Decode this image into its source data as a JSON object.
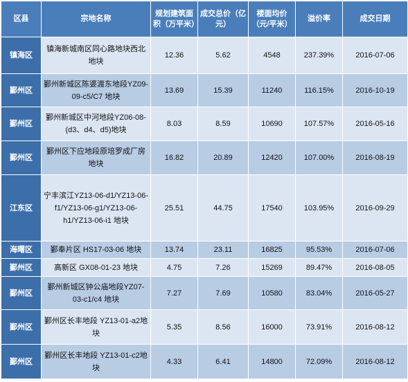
{
  "headers": [
    "区县",
    "宗地名称",
    "规划建筑面积（万平米）",
    "成交总价（亿元）",
    "楼面均价（元/平米）",
    "溢价率",
    "成交日期"
  ],
  "rows": [
    {
      "district": "镇海区",
      "name": "镇海新城南区同心路地块西北地块",
      "area": "12.36",
      "total": "5.62",
      "unit_price": "4548",
      "premium": "237.39%",
      "date": "2016-07-06"
    },
    {
      "district": "鄞州区",
      "name": "鄞州新城区陈婆渡东地段YZ09-09-c5/C7 地块",
      "area": "13.69",
      "total": "15.39",
      "unit_price": "11240",
      "premium": "116.15%",
      "date": "2016-10-19"
    },
    {
      "district": "鄞州区",
      "name": "鄞州新城区中河地段YZ06-08-(d3、d4、d5)地块",
      "area": "8.03",
      "total": "8.59",
      "unit_price": "10690",
      "premium": "107.57%",
      "date": "2016-05-16"
    },
    {
      "district": "鄞州区",
      "name": "鄞州区下应地段原培罗成厂房地块",
      "area": "16.82",
      "total": "20.89",
      "unit_price": "12420",
      "premium": "107.00%",
      "date": "2016-08-19"
    },
    {
      "district": "江东区",
      "name": "宁丰滨江YZ13-06-d1/YZ13-06-f1/YZ13-06-g1/YZ13-06-h1/YZ13-06-i1 地块",
      "area": "25.51",
      "total": "44.75",
      "unit_price": "17540",
      "premium": "103.95%",
      "date": "2016-09-29"
    },
    {
      "district": "海曙区",
      "name": "鄞奉片区 HS17-03-06 地块",
      "area": "13.74",
      "total": "23.11",
      "unit_price": "16825",
      "premium": "95.53%",
      "date": "2016-07-06"
    },
    {
      "district": "鄞州区",
      "name": "高新区 GX08-01-23 地块",
      "area": "4.75",
      "total": "7.26",
      "unit_price": "15269",
      "premium": "89.47%",
      "date": "2016-08-05"
    },
    {
      "district": "鄞州区",
      "name": "鄞州新城区钟公庙地段YZ07-03-c1/c4 地块",
      "area": "7.27",
      "total": "7.69",
      "unit_price": "10580",
      "premium": "83.04%",
      "date": "2016-05-27"
    },
    {
      "district": "鄞州区",
      "name": "鄞州区长丰地段 YZ13-01-a2地块",
      "area": "5.35",
      "total": "8.56",
      "unit_price": "16000",
      "premium": "73.91%",
      "date": "2016-08-12"
    },
    {
      "district": "鄞州区",
      "name": "鄞州区长丰地段 YZ13-01-c2地块",
      "area": "4.33",
      "total": "6.41",
      "unit_price": "14800",
      "premium": "72.09%",
      "date": "2016-08-12"
    }
  ]
}
